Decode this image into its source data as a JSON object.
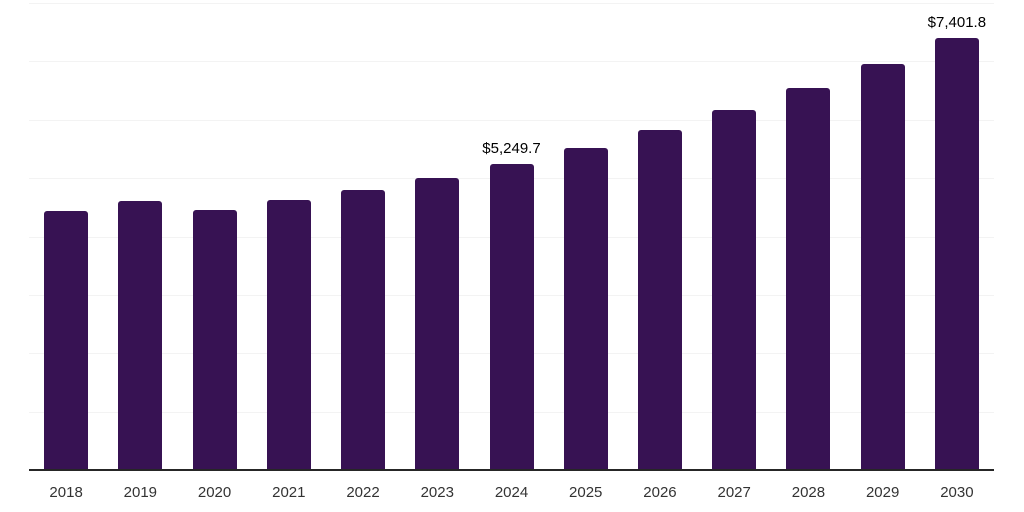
{
  "chart_data": {
    "type": "bar",
    "title": "",
    "xlabel": "",
    "ylabel": "",
    "categories": [
      "2018",
      "2019",
      "2020",
      "2021",
      "2022",
      "2023",
      "2024",
      "2025",
      "2026",
      "2027",
      "2028",
      "2029",
      "2030"
    ],
    "values": [
      4430,
      4610,
      4450,
      4620,
      4790,
      5010,
      5249.7,
      5520,
      5830,
      6160,
      6540,
      6960,
      7401.8
    ],
    "value_labels": {
      "2024": "$5,249.7",
      "2030": "$7,401.8"
    },
    "ylim": [
      0,
      8000
    ],
    "gridline_step": 1000,
    "grid": true,
    "legend": false,
    "colors": {
      "bar": "#371253",
      "axis": "#262626",
      "gridline": "#f3f3f3",
      "tick_label": "#333333",
      "value_label": "#000000",
      "background": "#ffffff"
    }
  }
}
